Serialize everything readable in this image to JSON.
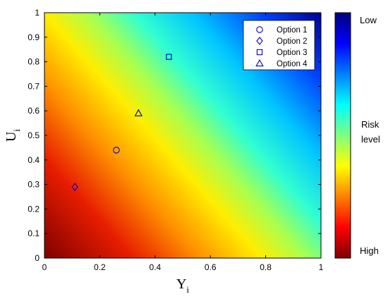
{
  "chart_data": {
    "type": "scatter",
    "title": "",
    "xlabel": "Y",
    "xlabel_subscript": "i",
    "ylabel": "U",
    "ylabel_subscript": "i",
    "xlim": [
      0,
      1
    ],
    "ylim": [
      0,
      1
    ],
    "x_ticks": [
      "0",
      "0.2",
      "0.4",
      "0.6",
      "0.8",
      "1"
    ],
    "y_ticks": [
      "0",
      "0.1",
      "0.2",
      "0.3",
      "0.4",
      "0.5",
      "0.6",
      "0.7",
      "0.8",
      "0.9",
      "1"
    ],
    "background": "gradient colormap (jet), risk increases toward origin",
    "grid": false,
    "legend_position": "top-right",
    "series": [
      {
        "name": "Option 1",
        "marker": "circle",
        "x": 0.26,
        "y": 0.44,
        "color": "#0000cc"
      },
      {
        "name": "Option 2",
        "marker": "diamond",
        "x": 0.11,
        "y": 0.29,
        "color": "#0000cc"
      },
      {
        "name": "Option 3",
        "marker": "square",
        "x": 0.45,
        "y": 0.82,
        "color": "#0000cc"
      },
      {
        "name": "Option 4",
        "marker": "triangle",
        "x": 0.34,
        "y": 0.59,
        "color": "#0000cc"
      }
    ],
    "colorbar": {
      "top_label": "Low",
      "middle_label": [
        "Risk",
        "level"
      ],
      "bottom_label": "High",
      "colormap": "jet"
    }
  }
}
